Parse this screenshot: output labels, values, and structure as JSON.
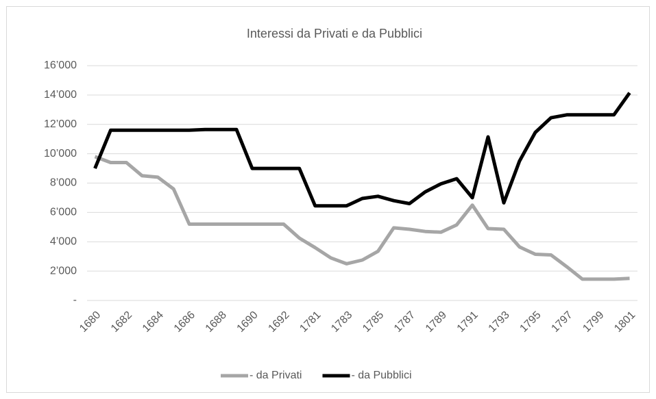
{
  "chart_data": {
    "type": "line",
    "title": "Interessi da Privati e da Pubblici",
    "categories": [
      "1680",
      null,
      "1682",
      null,
      "1684",
      null,
      "1686",
      null,
      "1688",
      null,
      "1690",
      null,
      "1692",
      null,
      "1781",
      null,
      "1783",
      null,
      "1785",
      null,
      "1787",
      null,
      "1789",
      null,
      "1791",
      null,
      "1793",
      null,
      "1795",
      null,
      "1797",
      null,
      "1799",
      null,
      "1801"
    ],
    "series": [
      {
        "name": "- da Privati",
        "color": "#a6a6a6",
        "values": [
          9800,
          9400,
          9400,
          8500,
          8400,
          7600,
          5200,
          5200,
          5200,
          5200,
          5200,
          5200,
          5200,
          4250,
          3600,
          2900,
          2500,
          2750,
          3350,
          4950,
          4850,
          4700,
          4650,
          5150,
          6500,
          4900,
          4850,
          3650,
          3150,
          3100,
          2300,
          1450,
          1450,
          1450,
          1500
        ]
      },
      {
        "name": "- da Pubblici",
        "color": "#000000",
        "values": [
          9000,
          11600,
          11600,
          11600,
          11600,
          11600,
          11600,
          11650,
          11650,
          11650,
          9000,
          9000,
          9000,
          9000,
          6450,
          6450,
          6450,
          6950,
          7100,
          6800,
          6600,
          7400,
          7950,
          8300,
          7000,
          11150,
          6650,
          9500,
          11450,
          12450,
          12650,
          12650,
          12650,
          12650,
          14150
        ]
      }
    ],
    "ylim": [
      0,
      16000
    ],
    "yticks": [
      {
        "value": 0,
        "label": "-"
      },
      {
        "value": 2000,
        "label": "2’000"
      },
      {
        "value": 4000,
        "label": "4’000"
      },
      {
        "value": 6000,
        "label": "6’000"
      },
      {
        "value": 8000,
        "label": "8’000"
      },
      {
        "value": 10000,
        "label": "10’000"
      },
      {
        "value": 12000,
        "label": "12’000"
      },
      {
        "value": 14000,
        "label": "14’000"
      },
      {
        "value": 16000,
        "label": "16’000"
      }
    ],
    "grid": true,
    "legend": "bottom"
  }
}
